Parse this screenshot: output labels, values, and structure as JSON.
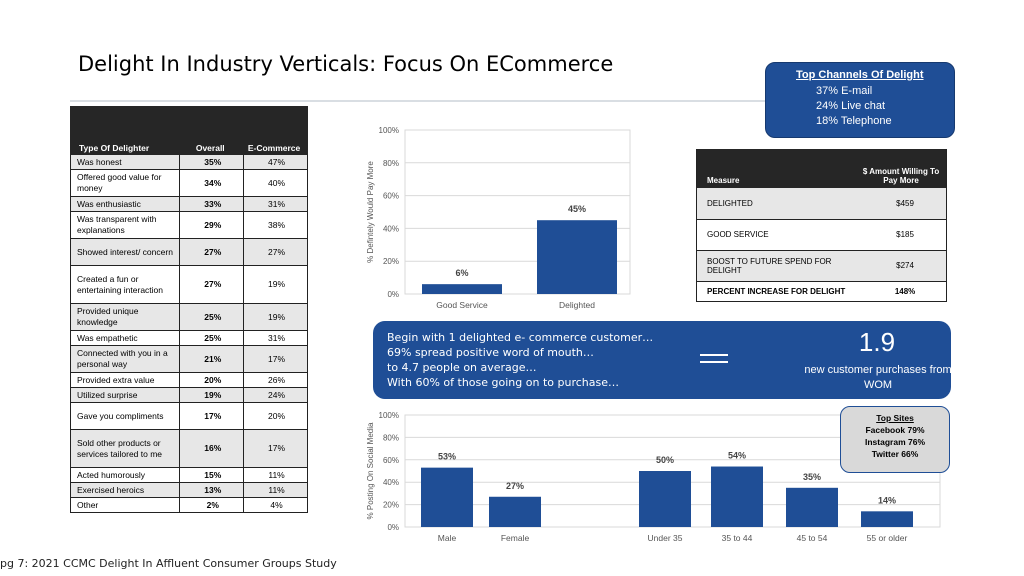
{
  "page": {
    "title": "Delight In Industry Verticals: Focus On ECommerce",
    "footer": "pg 7: 2021 CCMC Delight In Affluent Consumer Groups Study"
  },
  "delight_table": {
    "headers": [
      "Type Of Delighter",
      "Overall",
      "E-Commerce"
    ],
    "rows": [
      {
        "type": "Was honest",
        "overall": "35%",
        "ecommerce": "47%"
      },
      {
        "type": "Offered good value for money",
        "overall": "34%",
        "ecommerce": "40%"
      },
      {
        "type": "Was enthusiastic",
        "overall": "33%",
        "ecommerce": "31%"
      },
      {
        "type": "Was transparent with explanations",
        "overall": "29%",
        "ecommerce": "38%"
      },
      {
        "type": "Showed interest/ concern",
        "overall": "27%",
        "ecommerce": "27%"
      },
      {
        "type": "Created a fun or entertaining interaction",
        "overall": "27%",
        "ecommerce": "19%"
      },
      {
        "type": "Provided unique knowledge",
        "overall": "25%",
        "ecommerce": "19%"
      },
      {
        "type": "Was empathetic",
        "overall": "25%",
        "ecommerce": "31%"
      },
      {
        "type": "Connected with you in a personal way",
        "overall": "21%",
        "ecommerce": "17%"
      },
      {
        "type": "Provided extra value",
        "overall": "20%",
        "ecommerce": "26%"
      },
      {
        "type": "Utilized surprise",
        "overall": "19%",
        "ecommerce": "24%"
      },
      {
        "type": "Gave you compliments",
        "overall": "17%",
        "ecommerce": "20%"
      },
      {
        "type": "Sold other products or services tailored to me",
        "overall": "16%",
        "ecommerce": "17%"
      },
      {
        "type": "Acted humorously",
        "overall": "15%",
        "ecommerce": "11%"
      },
      {
        "type": "Exercised heroics",
        "overall": "13%",
        "ecommerce": "11%"
      },
      {
        "type": "Other",
        "overall": "2%",
        "ecommerce": "4%"
      }
    ]
  },
  "channels": {
    "heading": "Top Channels Of Delight",
    "lines": [
      "37% E-mail",
      "24% Live chat",
      "18% Telephone"
    ]
  },
  "measure_table": {
    "headers": [
      "Measure",
      "$ Amount Willing To Pay More"
    ],
    "rows": [
      {
        "measure": "DELIGHTED",
        "amount": "$459"
      },
      {
        "measure": "GOOD SERVICE",
        "amount": "$185"
      },
      {
        "measure": "BOOST TO FUTURE SPEND FOR DELIGHT",
        "amount": "$274"
      },
      {
        "measure": "PERCENT INCREASE FOR DELIGHT",
        "amount": "148%"
      }
    ]
  },
  "wom_banner": {
    "lines": [
      "Begin with 1 delighted e- commerce customer…",
      "69% spread positive word of mouth…",
      "to 4.7 people on average…",
      "With 60% of those going on to purchase…"
    ],
    "result_value": "1.9",
    "result_label": "new customer purchases from WOM"
  },
  "top_sites": {
    "heading": "Top Sites",
    "lines": [
      "Facebook 79%",
      "Instagram 76%",
      "Twitter 66%"
    ]
  },
  "colors": {
    "bar": "#1f4e96",
    "banner": "#1f4e96"
  },
  "chart_data": [
    {
      "type": "bar",
      "ylabel": "% Defintely Would Pay More",
      "ylim": [
        0,
        100
      ],
      "yticks": [
        "0%",
        "20%",
        "40%",
        "60%",
        "80%",
        "100%"
      ],
      "categories": [
        "Good Service",
        "Delighted"
      ],
      "values": [
        6,
        45
      ],
      "data_labels": [
        "6%",
        "45%"
      ],
      "grid": true
    },
    {
      "type": "bar",
      "ylabel": "% Posting On Social Media",
      "ylim": [
        0,
        100
      ],
      "yticks": [
        "0%",
        "20%",
        "40%",
        "60%",
        "80%",
        "100%"
      ],
      "categories": [
        "Male",
        "Female",
        "Under 35",
        "35 to 44",
        "45 to 54",
        "55 or older"
      ],
      "values": [
        53,
        27,
        50,
        54,
        35,
        14
      ],
      "data_labels": [
        "53%",
        "27%",
        "50%",
        "54%",
        "35%",
        "14%"
      ],
      "grid": true
    }
  ]
}
